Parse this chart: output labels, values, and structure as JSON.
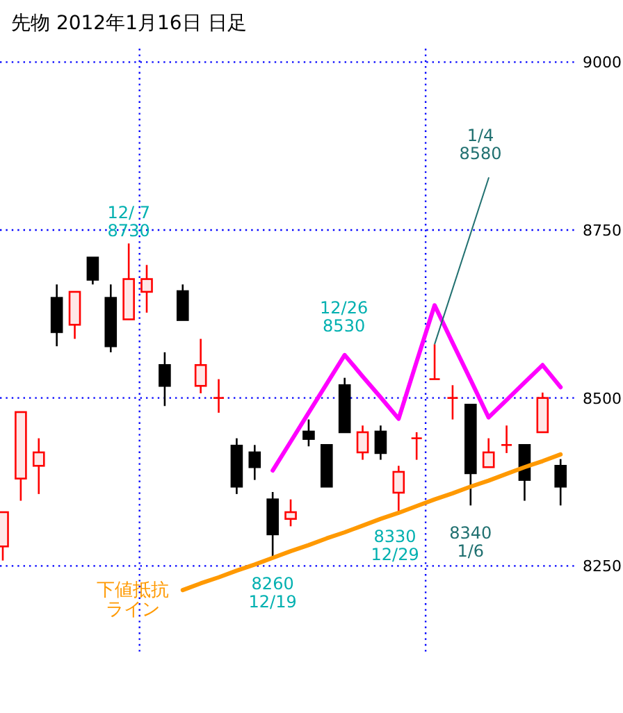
{
  "chart_data": {
    "type": "candlestick",
    "title": "先物 2012年1月16日 日足",
    "categories": [
      null,
      null,
      null,
      null,
      null,
      null,
      null,
      null,
      null,
      null,
      null,
      null,
      null,
      null,
      null,
      null,
      null,
      null,
      null,
      null,
      null,
      null,
      null,
      null,
      null,
      null,
      null,
      null,
      null,
      null,
      null,
      null
    ],
    "ohlc": [
      [
        8279,
        8330,
        8258,
        8330
      ],
      [
        8380,
        8479,
        8347,
        8479
      ],
      [
        8399,
        8440,
        8357,
        8419
      ],
      [
        8649,
        8669,
        8577,
        8598
      ],
      [
        8609,
        8658,
        8588,
        8658
      ],
      [
        8709,
        8709,
        8669,
        8676
      ],
      [
        8649,
        8669,
        8568,
        8577
      ],
      [
        8617,
        8730,
        8617,
        8677
      ],
      [
        8658,
        8698,
        8627,
        8677
      ],
      [
        8549,
        8568,
        8488,
        8518
      ],
      [
        8659,
        8669,
        8616,
        8616
      ],
      [
        8518,
        8588,
        8507,
        8549
      ],
      [
        8500,
        8528,
        8478,
        8500
      ],
      [
        8429,
        8440,
        8357,
        8368
      ],
      [
        8419,
        8430,
        8378,
        8397
      ],
      [
        8349,
        8360,
        8260,
        8297
      ],
      [
        8320,
        8349,
        8309,
        8330
      ],
      [
        8450,
        8468,
        8428,
        8439
      ],
      [
        8430,
        8430,
        8368,
        8368
      ],
      [
        8519,
        8530,
        8449,
        8449
      ],
      [
        8419,
        8459,
        8408,
        8449
      ],
      [
        8450,
        8459,
        8408,
        8418
      ],
      [
        8359,
        8399,
        8330,
        8390
      ],
      [
        8440,
        8449,
        8408,
        8440
      ],
      [
        8528,
        8580,
        8528,
        8528
      ],
      [
        8500,
        8519,
        8468,
        8500
      ],
      [
        8490,
        8490,
        8340,
        8388
      ],
      [
        8397,
        8440,
        8397,
        8419
      ],
      [
        8430,
        8459,
        8418,
        8430
      ],
      [
        8430,
        8430,
        8347,
        8378
      ],
      [
        8449,
        8508,
        8449,
        8500
      ],
      [
        8399,
        8409,
        8340,
        8368
      ]
    ],
    "series": [
      {
        "type": "line",
        "color": "#ff00ff",
        "values": [
          null,
          null,
          null,
          null,
          null,
          null,
          null,
          null,
          null,
          null,
          null,
          null,
          null,
          null,
          null,
          8392,
          8435,
          8478,
          8521,
          8564,
          8532,
          8501,
          8469,
          8554,
          8638,
          8582,
          8527,
          8471,
          8497,
          8523,
          8549,
          8516
        ]
      },
      {
        "type": "line",
        "color": "#ff9900",
        "values": [
          null,
          null,
          null,
          null,
          null,
          null,
          null,
          null,
          null,
          null,
          8214,
          8224,
          8233,
          8243,
          8252,
          8262,
          8272,
          8281,
          8291,
          8300,
          8310,
          8320,
          8329,
          8339,
          8349,
          8358,
          8368,
          8377,
          8387,
          8397,
          8406,
          8416
        ]
      }
    ],
    "ylim": [
      8120,
      9020
    ],
    "yticks": [
      8250,
      8500,
      8750,
      9000
    ],
    "grid": true,
    "tick_labels": "y",
    "annotations": [
      {
        "text": "12/ 7\n8730",
        "y": 8730
      },
      {
        "text": "12/26\n8530",
        "y": 8530
      },
      {
        "text": "8260\n12/19",
        "y": 8260
      },
      {
        "text": "8330\n12/29",
        "y": 8330
      },
      {
        "text": "8340\n1/6",
        "y": 8340
      },
      "1/4\n8580",
      "下値抵抗ライン"
    ]
  }
}
